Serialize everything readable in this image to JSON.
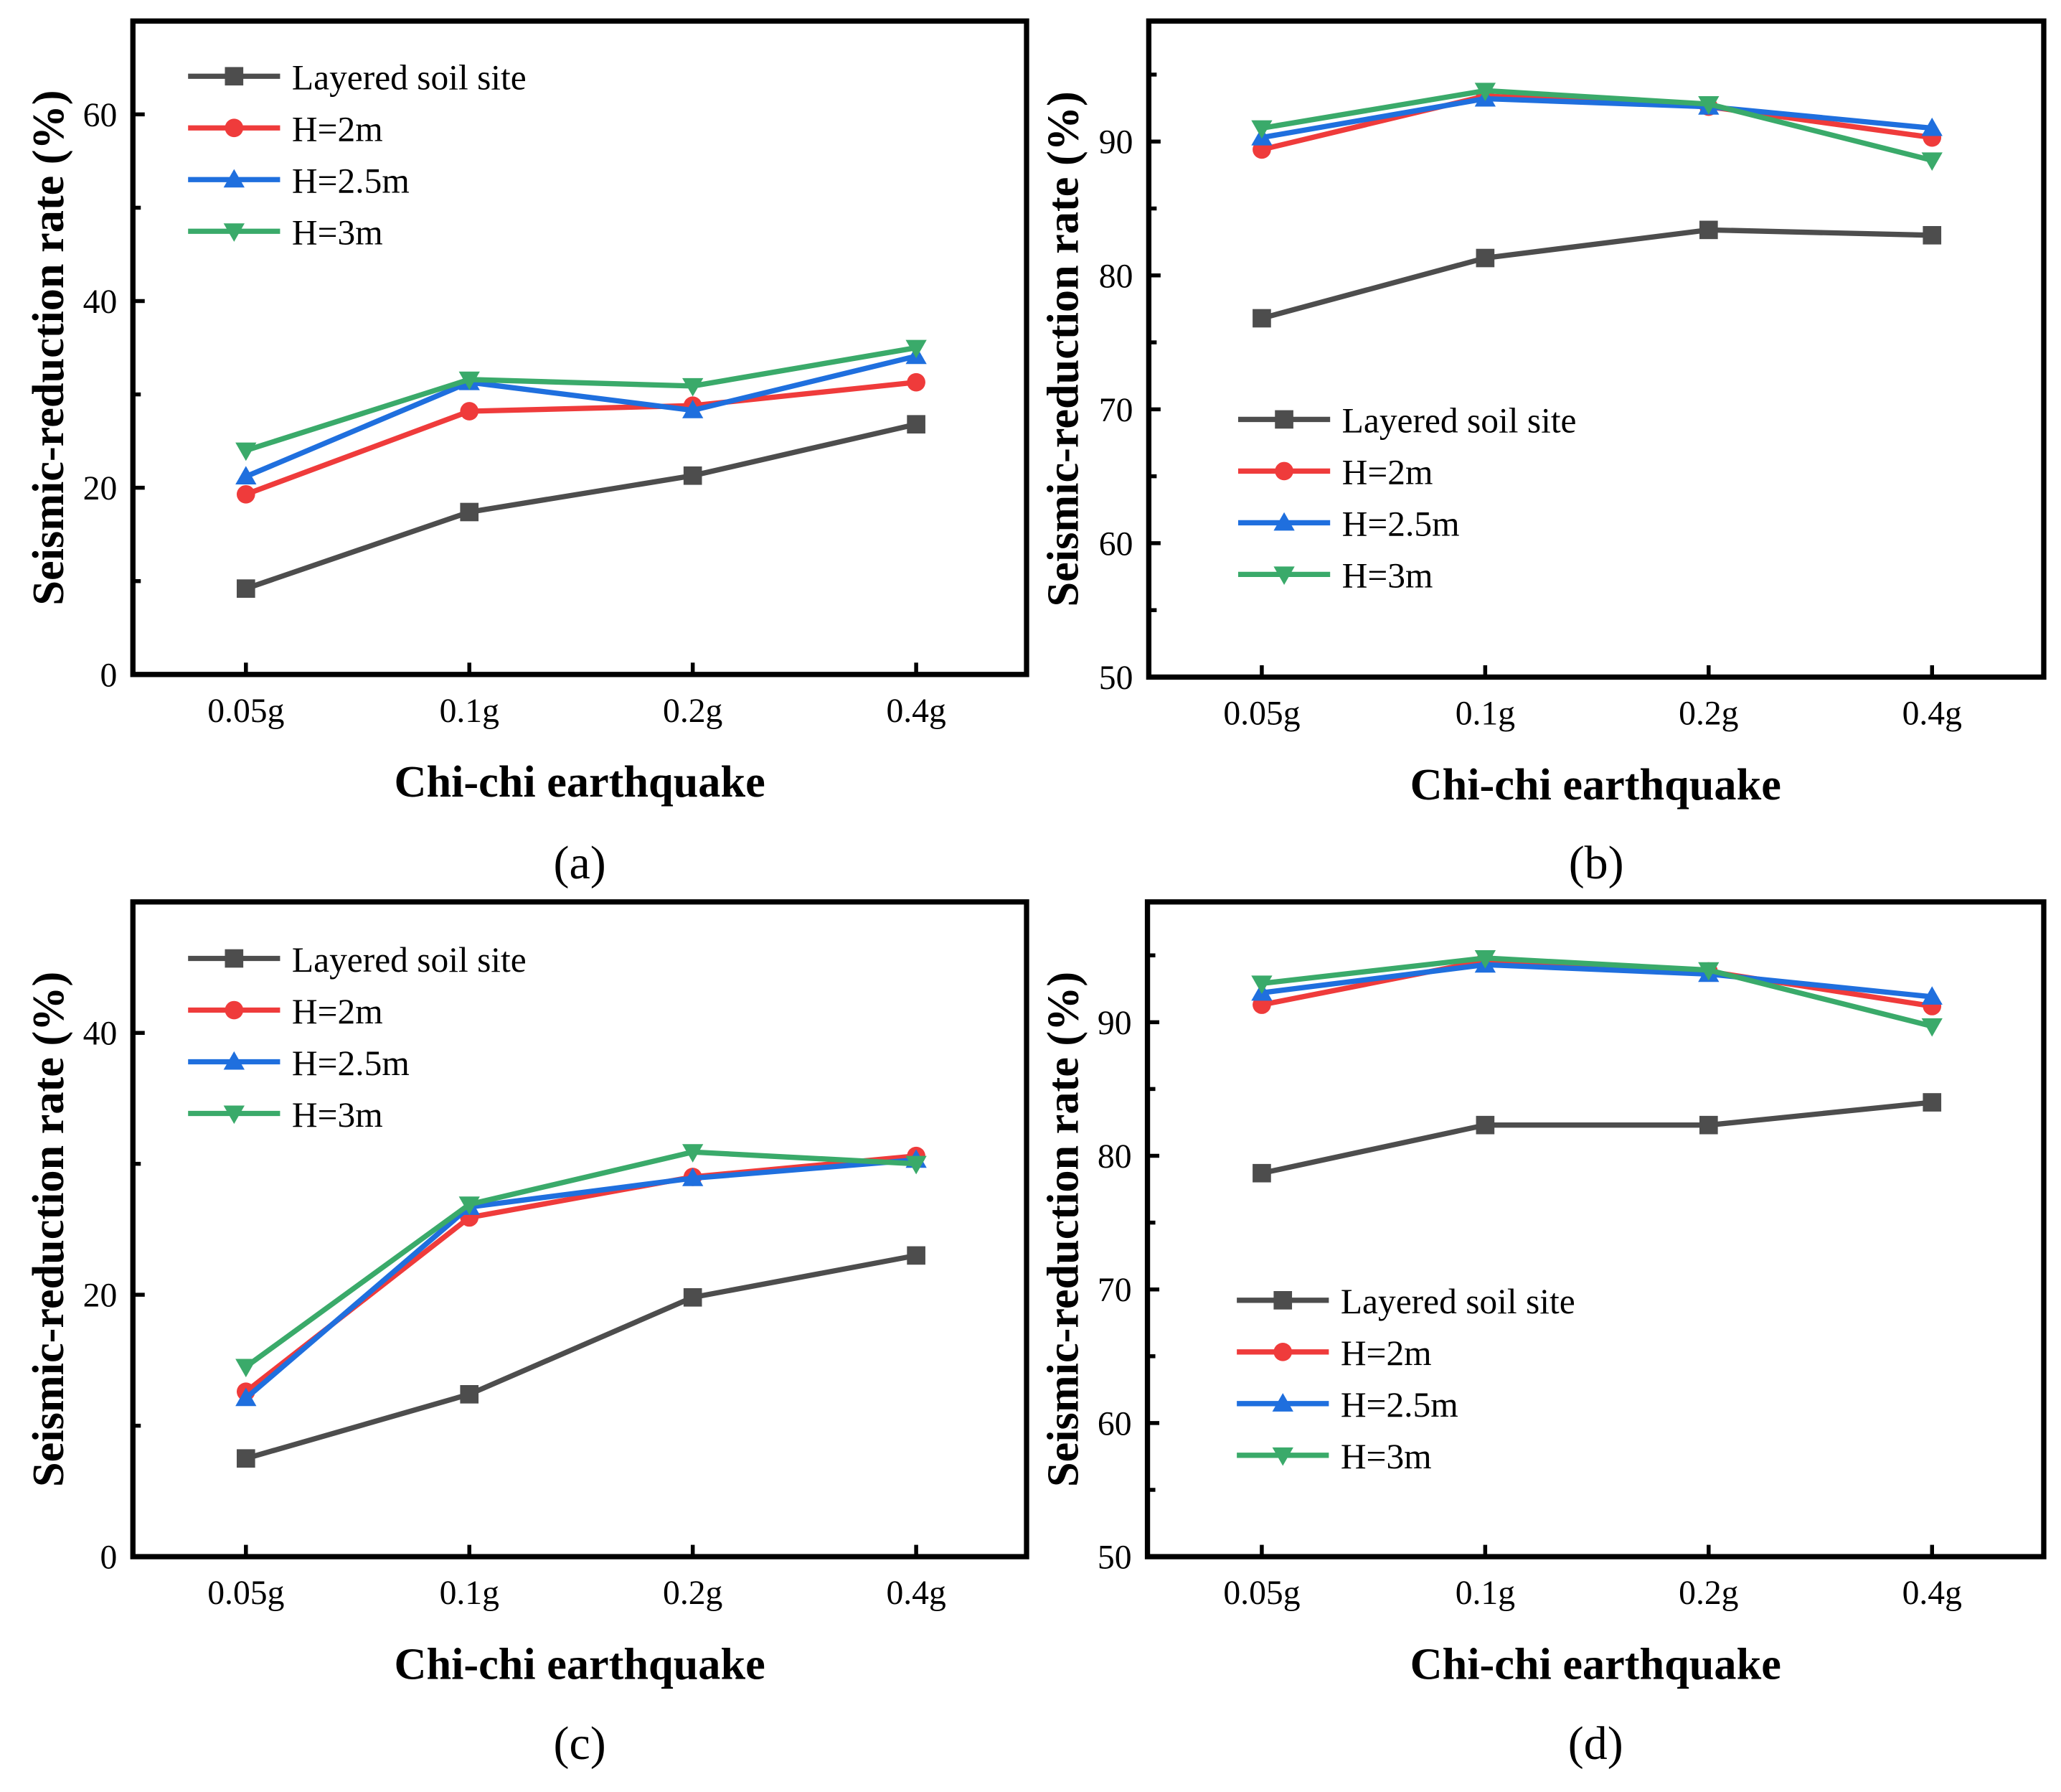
{
  "chart_data": [
    {
      "panel": "(a)",
      "type": "line",
      "xlabel": "Chi-chi earthquake",
      "ylabel": "Seismic-reduction rate (%)",
      "categories": [
        "0.05g",
        "0.1g",
        "0.2g",
        "0.4g"
      ],
      "ylim": [
        0,
        70
      ],
      "yticks": [
        0,
        20,
        40,
        60
      ],
      "legend_position": "top-left",
      "series": [
        {
          "name": "Layered soil site",
          "color": "#4d4d4d",
          "marker": "square",
          "values": [
            9.2,
            17.4,
            21.3,
            26.8
          ]
        },
        {
          "name": "H=2m",
          "color": "#ef3b3b",
          "marker": "circle",
          "values": [
            19.3,
            28.2,
            28.8,
            31.3
          ]
        },
        {
          "name": "H=2.5m",
          "color": "#1f6fde",
          "marker": "triangle-up",
          "values": [
            21.2,
            31.3,
            28.3,
            34.1
          ]
        },
        {
          "name": "H=3m",
          "color": "#3aaa6a",
          "marker": "triangle-down",
          "values": [
            24.0,
            31.6,
            30.9,
            35.0
          ]
        }
      ]
    },
    {
      "panel": "(b)",
      "type": "line",
      "xlabel": "Chi-chi earthquake",
      "ylabel": "Seismic-reduction rate (%)",
      "categories": [
        "0.05g",
        "0.1g",
        "0.2g",
        "0.4g"
      ],
      "ylim": [
        50,
        99
      ],
      "yticks": [
        50,
        60,
        70,
        80,
        90
      ],
      "legend_position": "lower-left",
      "series": [
        {
          "name": "Layered soil site",
          "color": "#4d4d4d",
          "marker": "square",
          "values": [
            76.8,
            81.3,
            83.4,
            83.0
          ]
        },
        {
          "name": "H=2m",
          "color": "#ef3b3b",
          "marker": "circle",
          "values": [
            89.4,
            93.4,
            92.6,
            90.3
          ]
        },
        {
          "name": "H=2.5m",
          "color": "#1f6fde",
          "marker": "triangle-up",
          "values": [
            90.3,
            93.2,
            92.6,
            91.0
          ]
        },
        {
          "name": "H=3m",
          "color": "#3aaa6a",
          "marker": "triangle-down",
          "values": [
            91.0,
            93.8,
            92.8,
            88.6
          ]
        }
      ]
    },
    {
      "panel": "(c)",
      "type": "line",
      "xlabel": "Chi-chi earthquake",
      "ylabel": "Seismic-reduction rate (%)",
      "categories": [
        "0.05g",
        "0.1g",
        "0.2g",
        "0.4g"
      ],
      "ylim": [
        0,
        50
      ],
      "yticks": [
        0,
        20,
        40
      ],
      "legend_position": "top-left",
      "series": [
        {
          "name": "Layered soil site",
          "color": "#4d4d4d",
          "marker": "square",
          "values": [
            7.5,
            12.4,
            19.8,
            23.0
          ]
        },
        {
          "name": "H=2m",
          "color": "#ef3b3b",
          "marker": "circle",
          "values": [
            12.6,
            25.9,
            29.0,
            30.6
          ]
        },
        {
          "name": "H=2.5m",
          "color": "#1f6fde",
          "marker": "triangle-up",
          "values": [
            12.1,
            26.7,
            28.9,
            30.3
          ]
        },
        {
          "name": "H=3m",
          "color": "#3aaa6a",
          "marker": "triangle-down",
          "values": [
            14.5,
            26.9,
            30.9,
            30.0
          ]
        }
      ]
    },
    {
      "panel": "(d)",
      "type": "line",
      "xlabel": "Chi-chi earthquake",
      "ylabel": "Seismic-reduction rate (%)",
      "categories": [
        "0.05g",
        "0.1g",
        "0.2g",
        "0.4g"
      ],
      "ylim": [
        50,
        99
      ],
      "yticks": [
        50,
        60,
        70,
        80,
        90
      ],
      "legend_position": "lower-left",
      "series": [
        {
          "name": "Layered soil site",
          "color": "#4d4d4d",
          "marker": "square",
          "values": [
            78.7,
            82.3,
            82.3,
            84.0
          ]
        },
        {
          "name": "H=2m",
          "color": "#ef3b3b",
          "marker": "circle",
          "values": [
            91.3,
            94.6,
            93.8,
            91.2
          ]
        },
        {
          "name": "H=2.5m",
          "color": "#1f6fde",
          "marker": "triangle-up",
          "values": [
            92.2,
            94.3,
            93.6,
            91.9
          ]
        },
        {
          "name": "H=3m",
          "color": "#3aaa6a",
          "marker": "triangle-down",
          "values": [
            92.9,
            94.8,
            93.9,
            89.7
          ]
        }
      ]
    }
  ]
}
